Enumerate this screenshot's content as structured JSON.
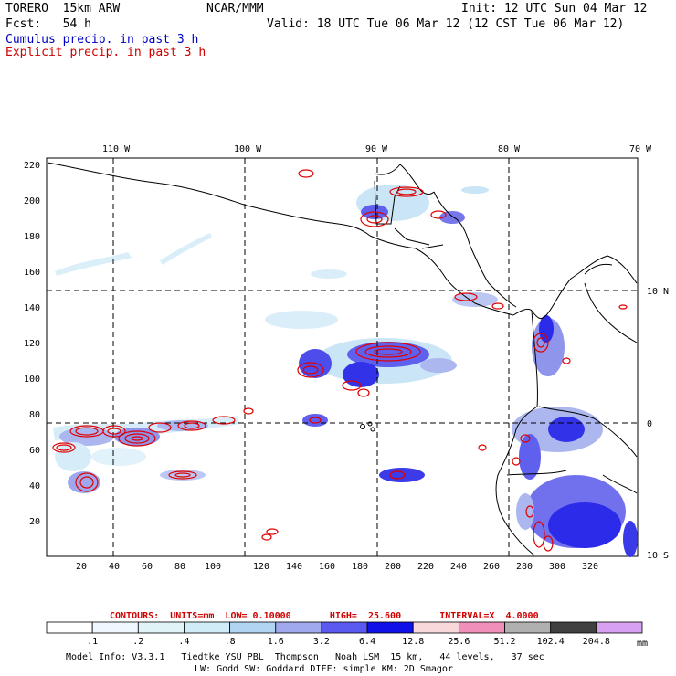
{
  "header": {
    "model": "TORERO  15km ARW",
    "org": "NCAR/MMM",
    "init": "Init: 12 UTC Sun 04 Mar 12",
    "fcst": "Fcst:   54 h",
    "valid": "Valid: 18 UTC Tue 06 Mar 12 (12 CST Tue 06 Mar 12)",
    "field1": "Cumulus precip. in past 3 h",
    "field2": "Explicit precip. in past 3 h"
  },
  "axes": {
    "lon_labels": [
      "110 W",
      "100 W",
      "90 W",
      "80 W",
      "70 W"
    ],
    "lat_labels": [
      "10 N",
      "0",
      "10 S"
    ],
    "x_ticks": [
      "20",
      "40",
      "60",
      "80",
      "100",
      "120",
      "140",
      "160",
      "180",
      "200",
      "220",
      "240",
      "260",
      "280",
      "300",
      "320"
    ],
    "y_ticks": [
      "220",
      "200",
      "180",
      "160",
      "140",
      "120",
      "100",
      "80",
      "60",
      "40",
      "20"
    ]
  },
  "contours": {
    "label": "CONTOURS:  UNITS=mm  LOW= 0.10000       HIGH=  25.600       INTERVAL=X  4.0000"
  },
  "colorbar": {
    "units": "mm",
    "levels": [
      ".1",
      ".2",
      ".4",
      ".8",
      "1.6",
      "3.2",
      "6.4",
      "12.8",
      "25.6",
      "51.2",
      "102.4",
      "204.8"
    ],
    "colors": [
      "#ffffff",
      "#f0f8ff",
      "#e0f4f8",
      "#d0ecf6",
      "#b0d4f2",
      "#a0a8ee",
      "#5a5af0",
      "#1010e8",
      "#f8d8d8",
      "#f090b8",
      "#b0b0b0",
      "#404040",
      "#d8a0f0"
    ]
  },
  "footer": {
    "line1": "Model Info: V3.3.1   Tiedtke YSU PBL  Thompson   Noah LSM  15 km,   44 levels,   37 sec",
    "line2": "LW: Godd SW: Goddard DIFF: simple KM: 2D Smagor"
  }
}
